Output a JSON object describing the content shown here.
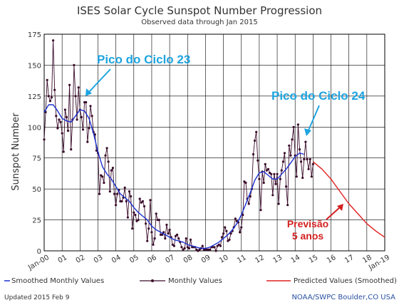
{
  "chart_data": {
    "type": "line",
    "title": "ISES Solar Cycle Sunspot Number Progression",
    "subtitle": "Observed data through Jan 2015",
    "ylabel": "Sunspot Number",
    "xlabel": "",
    "ylim": [
      0,
      175
    ],
    "yticks": [
      "0",
      "25",
      "50",
      "75",
      "100",
      "125",
      "150",
      "175"
    ],
    "xlim": [
      2000,
      2019
    ],
    "xticks": [
      {
        "label": "Jan-00",
        "x": 2000
      },
      {
        "label": "01",
        "x": 2001
      },
      {
        "label": "02",
        "x": 2002
      },
      {
        "label": "03",
        "x": 2003
      },
      {
        "label": "04",
        "x": 2004
      },
      {
        "label": "05",
        "x": 2005
      },
      {
        "label": "06",
        "x": 2006
      },
      {
        "label": "07",
        "x": 2007
      },
      {
        "label": "08",
        "x": 2008
      },
      {
        "label": "09",
        "x": 2009
      },
      {
        "label": "10",
        "x": 2010
      },
      {
        "label": "11",
        "x": 2011
      },
      {
        "label": "12",
        "x": 2012
      },
      {
        "label": "13",
        "x": 2013
      },
      {
        "label": "14",
        "x": 2014
      },
      {
        "label": "15",
        "x": 2015
      },
      {
        "label": "16",
        "x": 2016
      },
      {
        "label": "17",
        "x": 2017
      },
      {
        "label": "18",
        "x": 2018
      },
      {
        "label": "Jan-19",
        "x": 2019
      }
    ],
    "grid": true,
    "legend_position": "bottom",
    "series": [
      {
        "name": "Smoothed Monthly Values",
        "color": "#1a2fd0",
        "x": [
          2000.0,
          2000.25,
          2000.5,
          2000.75,
          2001.0,
          2001.25,
          2001.5,
          2001.75,
          2002.0,
          2002.25,
          2002.5,
          2002.75,
          2003.0,
          2003.25,
          2003.5,
          2003.75,
          2004.0,
          2004.25,
          2004.5,
          2004.75,
          2005.0,
          2005.25,
          2005.5,
          2005.75,
          2006.0,
          2006.25,
          2006.5,
          2006.75,
          2007.0,
          2007.25,
          2007.5,
          2007.75,
          2008.0,
          2008.25,
          2008.5,
          2008.75,
          2009.0,
          2009.25,
          2009.5,
          2009.75,
          2010.0,
          2010.25,
          2010.5,
          2010.75,
          2011.0,
          2011.25,
          2011.5,
          2011.75,
          2012.0,
          2012.25,
          2012.5,
          2012.75,
          2013.0,
          2013.25,
          2013.5,
          2013.75,
          2014.0,
          2014.25,
          2014.5
        ],
        "values": [
          112,
          118,
          118,
          113,
          107,
          105,
          104,
          109,
          114,
          113,
          107,
          95,
          80,
          68,
          62,
          58,
          52,
          46,
          43,
          40,
          35,
          31,
          28,
          25,
          20,
          17,
          15,
          13,
          11,
          9,
          8,
          7,
          5,
          4,
          3,
          2,
          2,
          3,
          5,
          7,
          10,
          13,
          17,
          22,
          29,
          38,
          47,
          57,
          63,
          64,
          61,
          58,
          58,
          62,
          66,
          71,
          76,
          79,
          78
        ]
      },
      {
        "name": "Monthly Values",
        "color": "#3a0c2a",
        "x": [
          2000.0,
          2000.083,
          2000.167,
          2000.25,
          2000.333,
          2000.417,
          2000.5,
          2000.583,
          2000.667,
          2000.75,
          2000.833,
          2000.917,
          2001.0,
          2001.083,
          2001.167,
          2001.25,
          2001.333,
          2001.417,
          2001.5,
          2001.583,
          2001.667,
          2001.75,
          2001.833,
          2001.917,
          2002.0,
          2002.083,
          2002.167,
          2002.25,
          2002.333,
          2002.417,
          2002.5,
          2002.583,
          2002.667,
          2002.75,
          2002.833,
          2002.917,
          2003.0,
          2003.083,
          2003.167,
          2003.25,
          2003.333,
          2003.417,
          2003.5,
          2003.583,
          2003.667,
          2003.75,
          2003.833,
          2003.917,
          2004.0,
          2004.083,
          2004.167,
          2004.25,
          2004.333,
          2004.417,
          2004.5,
          2004.583,
          2004.667,
          2004.75,
          2004.833,
          2004.917,
          2005.0,
          2005.083,
          2005.167,
          2005.25,
          2005.333,
          2005.417,
          2005.5,
          2005.583,
          2005.667,
          2005.75,
          2005.833,
          2005.917,
          2006.0,
          2006.083,
          2006.167,
          2006.25,
          2006.333,
          2006.417,
          2006.5,
          2006.583,
          2006.667,
          2006.75,
          2006.833,
          2006.917,
          2007.0,
          2007.083,
          2007.167,
          2007.25,
          2007.333,
          2007.417,
          2007.5,
          2007.583,
          2007.667,
          2007.75,
          2007.833,
          2007.917,
          2008.0,
          2008.083,
          2008.167,
          2008.25,
          2008.333,
          2008.417,
          2008.5,
          2008.583,
          2008.667,
          2008.75,
          2008.833,
          2008.917,
          2009.0,
          2009.083,
          2009.167,
          2009.25,
          2009.333,
          2009.417,
          2009.5,
          2009.583,
          2009.667,
          2009.75,
          2009.833,
          2009.917,
          2010.0,
          2010.083,
          2010.167,
          2010.25,
          2010.333,
          2010.417,
          2010.5,
          2010.583,
          2010.667,
          2010.75,
          2010.833,
          2010.917,
          2011.0,
          2011.083,
          2011.167,
          2011.25,
          2011.333,
          2011.417,
          2011.5,
          2011.583,
          2011.667,
          2011.75,
          2011.833,
          2011.917,
          2012.0,
          2012.083,
          2012.167,
          2012.25,
          2012.333,
          2012.417,
          2012.5,
          2012.583,
          2012.667,
          2012.75,
          2012.833,
          2012.917,
          2013.0,
          2013.083,
          2013.167,
          2013.25,
          2013.333,
          2013.417,
          2013.5,
          2013.583,
          2013.667,
          2013.75,
          2013.833,
          2013.917,
          2014.0,
          2014.083,
          2014.167,
          2014.25,
          2014.333,
          2014.417,
          2014.5,
          2014.583,
          2014.667,
          2014.75,
          2014.833,
          2014.917,
          2015.0
        ],
        "values": [
          90,
          112,
          138,
          125,
          121,
          124,
          170,
          130,
          109,
          99,
          106,
          104,
          95,
          80,
          114,
          108,
          97,
          134,
          82,
          106,
          150,
          125,
          106,
          132,
          114,
          108,
          98,
          120,
          120,
          88,
          99,
          117,
          109,
          96,
          94,
          81,
          79,
          46,
          61,
          60,
          55,
          77,
          83,
          72,
          48,
          65,
          67,
          46,
          37,
          46,
          49,
          40,
          40,
          43,
          51,
          40,
          27,
          48,
          44,
          18,
          31,
          29,
          24,
          25,
          42,
          39,
          40,
          36,
          22,
          8,
          18,
          41,
          15,
          5,
          10,
          30,
          25,
          25,
          13,
          13,
          15,
          10,
          21,
          14,
          17,
          11,
          5,
          4,
          12,
          13,
          10,
          7,
          3,
          1,
          2,
          10,
          3,
          2,
          9,
          3,
          3,
          3,
          1,
          0,
          1,
          2,
          4,
          1,
          1,
          1,
          1,
          1,
          3,
          3,
          3,
          0,
          4,
          5,
          4,
          11,
          14,
          19,
          16,
          8,
          9,
          14,
          16,
          19,
          26,
          24,
          23,
          15,
          19,
          29,
          56,
          55,
          42,
          38,
          44,
          50,
          78,
          89,
          96,
          73,
          58,
          33,
          64,
          55,
          70,
          65,
          66,
          63,
          62,
          45,
          62,
          54,
          62,
          38,
          58,
          65,
          72,
          79,
          52,
          37,
          85,
          77,
          90,
          100,
          77,
          60,
          102,
          82,
          72,
          59,
          74,
          88,
          74,
          66,
          74,
          60,
          70
        ],
        "marker": "dot"
      },
      {
        "name": "Predicted Values (Smoothed)",
        "color": "#e02020",
        "x": [
          2015.0,
          2015.5,
          2016.0,
          2016.5,
          2017.0,
          2017.5,
          2018.0,
          2018.5,
          2019.0
        ],
        "values": [
          72,
          66,
          58,
          48,
          38,
          30,
          22,
          16,
          11
        ]
      }
    ],
    "annotations": [
      {
        "text": "Pico do Ciclo 23",
        "color": "#1fa4e0"
      },
      {
        "text": "Pico do Ciclo 24",
        "color": "#1fa4e0"
      },
      {
        "text": "Previsão",
        "color": "#d42020"
      },
      {
        "text": "5 anos",
        "color": "#d42020"
      }
    ]
  },
  "footer": {
    "updated": "Updated 2015 Feb  9",
    "source": "NOAA/SWPC Boulder,CO USA"
  }
}
